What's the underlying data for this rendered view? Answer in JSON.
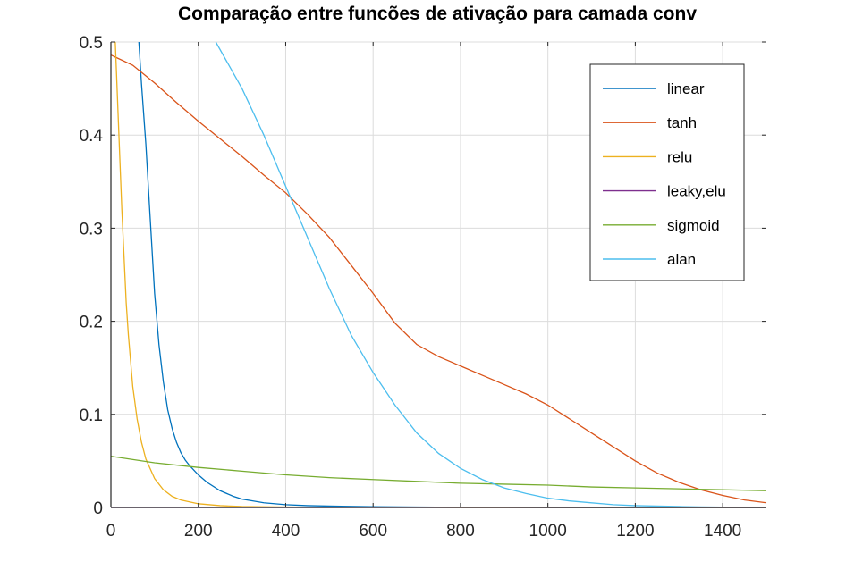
{
  "chart_data": {
    "type": "line",
    "title": "Comparação entre funcões de ativação para camada conv",
    "xlabel": "",
    "ylabel": "",
    "xlim": [
      0,
      1500
    ],
    "ylim": [
      0,
      0.5
    ],
    "grid": true,
    "legend_position": "top-right",
    "x_ticks": [
      0,
      200,
      400,
      600,
      800,
      1000,
      1200,
      1400
    ],
    "y_ticks": [
      0,
      0.1,
      0.2,
      0.3,
      0.4,
      0.5
    ],
    "x_tick_labels": [
      "0",
      "200",
      "400",
      "600",
      "800",
      "1000",
      "1200",
      "1400"
    ],
    "y_tick_labels": [
      "0",
      "0.1",
      "0.2",
      "0.3",
      "0.4",
      "0.5"
    ],
    "series": [
      {
        "name": "linear",
        "color": "#0072bd",
        "x": [
          64,
          70,
          80,
          90,
          100,
          110,
          120,
          130,
          140,
          150,
          160,
          170,
          180,
          200,
          220,
          250,
          280,
          300,
          350,
          400,
          450,
          500,
          600,
          700,
          800,
          900,
          1000,
          1200,
          1500
        ],
        "y": [
          0.5,
          0.455,
          0.39,
          0.31,
          0.23,
          0.175,
          0.135,
          0.105,
          0.085,
          0.07,
          0.059,
          0.051,
          0.045,
          0.035,
          0.027,
          0.018,
          0.012,
          0.009,
          0.005,
          0.003,
          0.002,
          0.0015,
          0.0008,
          0.0004,
          0.0002,
          0.0001,
          0.0,
          0.0,
          0.0
        ]
      },
      {
        "name": "tanh",
        "color": "#d95319",
        "x": [
          0,
          50,
          100,
          150,
          200,
          250,
          300,
          350,
          400,
          450,
          500,
          550,
          600,
          650,
          700,
          750,
          800,
          850,
          900,
          950,
          1000,
          1050,
          1100,
          1150,
          1200,
          1250,
          1300,
          1350,
          1400,
          1450,
          1500
        ],
        "y": [
          0.486,
          0.475,
          0.456,
          0.435,
          0.415,
          0.396,
          0.377,
          0.357,
          0.338,
          0.315,
          0.29,
          0.26,
          0.23,
          0.198,
          0.175,
          0.162,
          0.152,
          0.142,
          0.132,
          0.122,
          0.11,
          0.095,
          0.08,
          0.065,
          0.05,
          0.037,
          0.027,
          0.019,
          0.013,
          0.008,
          0.005
        ]
      },
      {
        "name": "relu",
        "color": "#edb120",
        "x": [
          10,
          15,
          20,
          25,
          30,
          35,
          40,
          50,
          60,
          70,
          80,
          100,
          120,
          140,
          160,
          180,
          200,
          250,
          300,
          400,
          500,
          700,
          1000,
          1500
        ],
        "y": [
          0.5,
          0.44,
          0.38,
          0.32,
          0.27,
          0.22,
          0.185,
          0.13,
          0.095,
          0.07,
          0.052,
          0.031,
          0.019,
          0.012,
          0.008,
          0.006,
          0.004,
          0.002,
          0.001,
          0.0005,
          0.0002,
          0.0001,
          0.0,
          0.0
        ]
      },
      {
        "name": "leaky,elu",
        "color": "#7e2f8e",
        "x": [
          0,
          1500
        ],
        "y": [
          0.0,
          0.0
        ]
      },
      {
        "name": "sigmoid",
        "color": "#77ac30",
        "x": [
          0,
          100,
          200,
          300,
          400,
          500,
          600,
          700,
          800,
          900,
          1000,
          1100,
          1200,
          1300,
          1400,
          1500
        ],
        "y": [
          0.055,
          0.048,
          0.043,
          0.039,
          0.035,
          0.032,
          0.03,
          0.028,
          0.026,
          0.025,
          0.024,
          0.022,
          0.021,
          0.02,
          0.019,
          0.018
        ]
      },
      {
        "name": "alan",
        "color": "#4dbeee",
        "x": [
          240,
          300,
          350,
          400,
          450,
          500,
          550,
          600,
          650,
          700,
          750,
          800,
          850,
          900,
          950,
          1000,
          1050,
          1100,
          1150,
          1200,
          1250,
          1300,
          1350,
          1400,
          1450,
          1500
        ],
        "y": [
          0.5,
          0.45,
          0.4,
          0.345,
          0.29,
          0.235,
          0.185,
          0.145,
          0.11,
          0.08,
          0.058,
          0.042,
          0.03,
          0.021,
          0.015,
          0.01,
          0.007,
          0.005,
          0.003,
          0.002,
          0.0015,
          0.001,
          0.0006,
          0.0003,
          0.0002,
          0.0001
        ]
      }
    ]
  }
}
